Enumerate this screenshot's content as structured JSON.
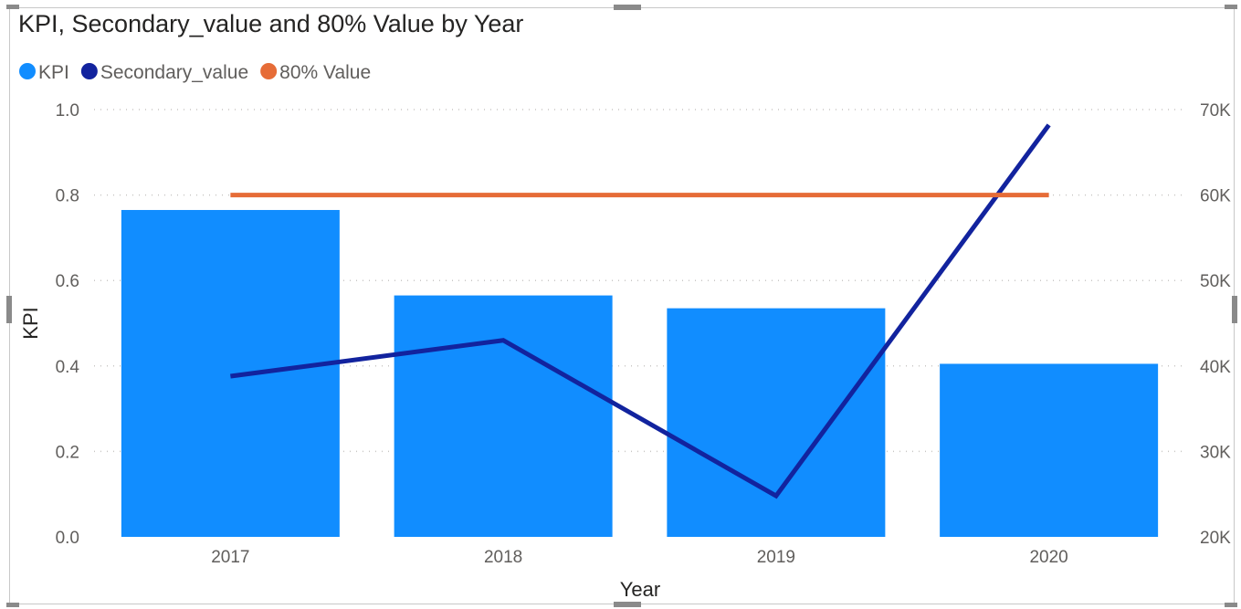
{
  "chart_data": {
    "type": "bar",
    "title": "KPI, Secondary_value and 80% Value by Year",
    "xlabel": "Year",
    "ylabel": "KPI",
    "categories": [
      "2017",
      "2018",
      "2019",
      "2020"
    ],
    "series": [
      {
        "name": "KPI",
        "kind": "bar",
        "axis": "left",
        "color": "#118DFF",
        "values": [
          0.765,
          0.565,
          0.535,
          0.405
        ]
      },
      {
        "name": "Secondary_value",
        "kind": "line",
        "axis": "right",
        "color": "#12239E",
        "values": [
          38800,
          43000,
          24800,
          68200
        ]
      },
      {
        "name": "80% Value",
        "kind": "line",
        "axis": "left",
        "color": "#E66C37",
        "values": [
          0.8,
          0.8,
          0.8,
          0.8
        ]
      }
    ],
    "ylim": [
      0,
      1
    ],
    "y_ticks": [
      "0.0",
      "0.2",
      "0.4",
      "0.6",
      "0.8",
      "1.0"
    ],
    "y2lim": [
      20000,
      70000
    ],
    "y2_ticks": [
      "20K",
      "30K",
      "40K",
      "50K",
      "60K",
      "70K"
    ],
    "grid": true,
    "legend_position": "top-left"
  }
}
